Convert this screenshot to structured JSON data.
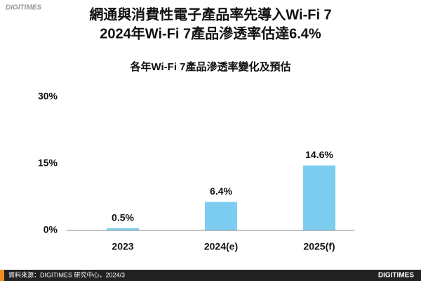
{
  "logo": "DIGITIMES",
  "source": "資料來源：DIGITIMES 研究中心，2024/3",
  "chart_data": {
    "type": "bar",
    "title": [
      "網通與消費性電子產品率先導入Wi-Fi 7",
      "2024年Wi-Fi 7產品滲透率估達6.4%"
    ],
    "subtitle": "各年Wi-Fi 7產品滲透率變化及預估",
    "categories": [
      "2023",
      "2024(e)",
      "2025(f)"
    ],
    "values": [
      0.5,
      6.4,
      14.6
    ],
    "value_labels": [
      "0.5%",
      "6.4%",
      "14.6%"
    ],
    "color": "#7ccdf0",
    "ylim": [
      0,
      30
    ],
    "yticks": [
      {
        "value": 0,
        "label": "0%"
      },
      {
        "value": 15,
        "label": "15%"
      },
      {
        "value": 30,
        "label": "30%"
      }
    ],
    "grid": false
  }
}
